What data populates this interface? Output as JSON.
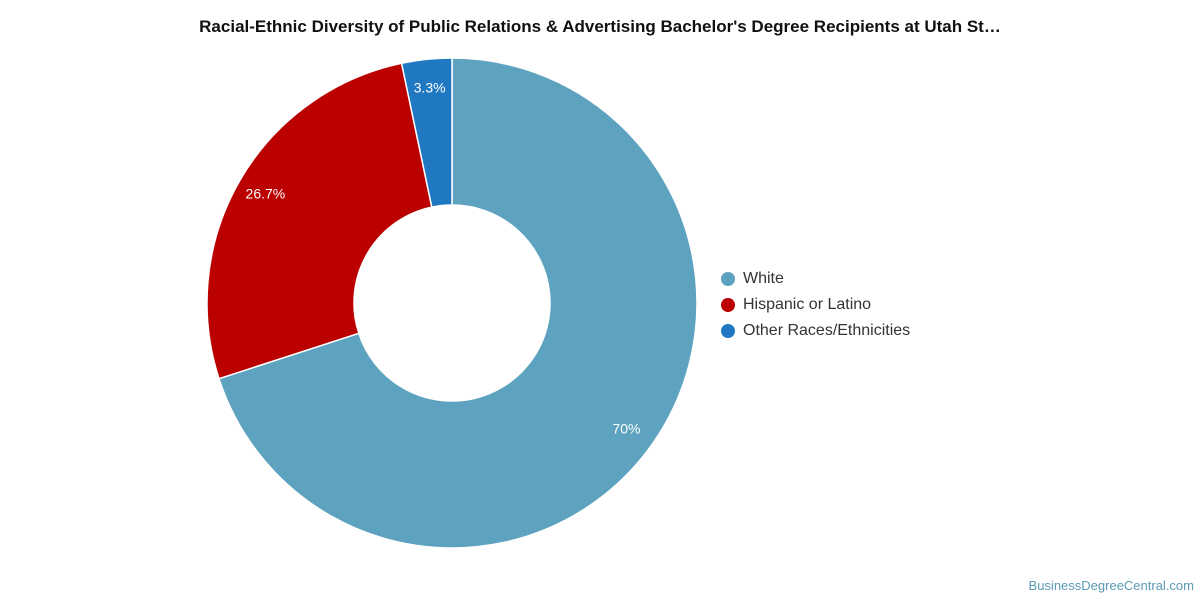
{
  "chart_data": {
    "type": "pie",
    "variant": "donut",
    "title": "Racial-Ethnic Diversity of Public Relations & Advertising Bachelor's Degree Recipients at Utah St…",
    "legend_position": "right",
    "slices": [
      {
        "label": "White",
        "value": 70,
        "value_label": "70%",
        "color": "#5da3bf"
      },
      {
        "label": "Hispanic or Latino",
        "value": 26.7,
        "value_label": "26.7%",
        "color": "#bb0000"
      },
      {
        "label": "Other Races/Ethnicities",
        "value": 3.3,
        "value_label": "3.3%",
        "color": "#1f78c1"
      }
    ]
  },
  "watermark": "BusinessDegreeCentral.com"
}
